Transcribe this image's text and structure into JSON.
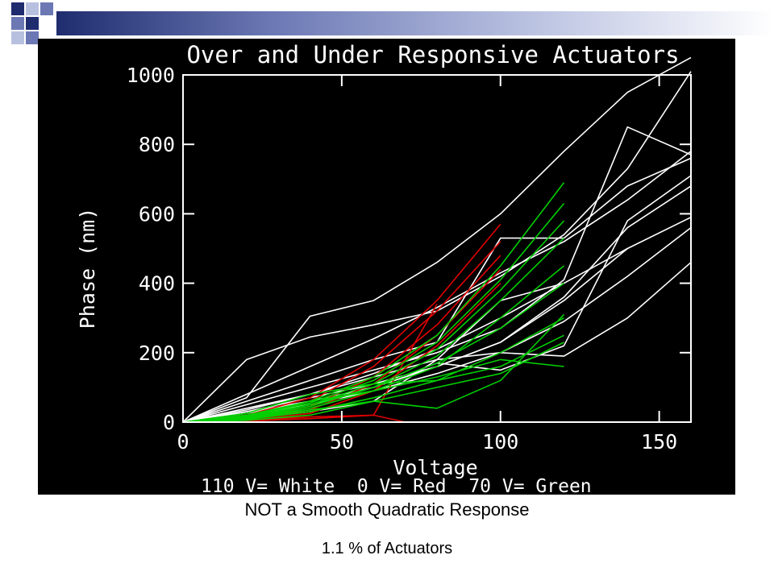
{
  "slide": {
    "caption": "NOT a Smooth Quadratic Response",
    "subcaption": "1.1 % of Actuators",
    "accent_colors": [
      "#1f2c6e",
      "#6b78b4",
      "#b8c0e0"
    ]
  },
  "chart_data": {
    "type": "line",
    "title": "Over and Under Responsive Actuators",
    "xlabel": "Voltage",
    "ylabel": "Phase (nm)",
    "legend_text": "110 V= White  0 V= Red  70 V= Green",
    "xlim": [
      0,
      160
    ],
    "ylim": [
      0,
      1000
    ],
    "xticks": [
      0,
      50,
      100,
      150
    ],
    "yticks": [
      0,
      200,
      400,
      600,
      800,
      1000
    ],
    "background": "#000000",
    "grid": false,
    "series_colors": {
      "white": "#ffffff",
      "red": "#e00000",
      "green": "#00d000"
    },
    "series": [
      {
        "color": "white",
        "x": [
          0,
          20,
          40,
          60,
          80,
          100,
          120,
          140,
          160
        ],
        "y": [
          0,
          180,
          245,
          280,
          320,
          420,
          540,
          730,
          1010
        ]
      },
      {
        "color": "white",
        "x": [
          0,
          20,
          40,
          60,
          80,
          100,
          120,
          140,
          160
        ],
        "y": [
          0,
          80,
          160,
          240,
          330,
          430,
          520,
          640,
          780
        ]
      },
      {
        "color": "white",
        "x": [
          0,
          20,
          40,
          60,
          80,
          100,
          120,
          140,
          160
        ],
        "y": [
          0,
          70,
          305,
          350,
          460,
          600,
          780,
          950,
          1050
        ]
      },
      {
        "color": "white",
        "x": [
          0,
          20,
          40,
          60,
          80,
          100,
          120,
          140,
          160
        ],
        "y": [
          0,
          50,
          100,
          150,
          200,
          270,
          410,
          850,
          770
        ]
      },
      {
        "color": "white",
        "x": [
          0,
          20,
          40,
          60,
          80,
          100,
          120,
          140,
          160
        ],
        "y": [
          0,
          40,
          80,
          130,
          180,
          200,
          190,
          300,
          460
        ]
      },
      {
        "color": "white",
        "x": [
          0,
          20,
          40,
          60,
          80,
          100,
          120,
          140,
          160
        ],
        "y": [
          0,
          30,
          60,
          100,
          160,
          230,
          350,
          500,
          590
        ]
      },
      {
        "color": "white",
        "x": [
          0,
          20,
          40,
          60,
          80,
          100,
          120,
          140,
          160
        ],
        "y": [
          0,
          30,
          70,
          110,
          160,
          230,
          360,
          560,
          680
        ]
      },
      {
        "color": "white",
        "x": [
          0,
          20,
          40,
          60,
          80,
          100,
          120,
          140,
          160
        ],
        "y": [
          0,
          20,
          50,
          90,
          140,
          200,
          290,
          420,
          560
        ]
      },
      {
        "color": "white",
        "x": [
          0,
          20,
          40,
          60,
          80,
          100,
          120,
          140,
          160
        ],
        "y": [
          0,
          60,
          120,
          180,
          230,
          530,
          530,
          680,
          760
        ]
      },
      {
        "color": "white",
        "x": [
          0,
          20,
          40,
          60,
          80,
          100,
          120,
          140,
          160
        ],
        "y": [
          0,
          25,
          60,
          100,
          170,
          150,
          220,
          580,
          710
        ]
      },
      {
        "color": "white",
        "x": [
          0,
          20,
          40,
          60,
          80,
          100,
          120
        ],
        "y": [
          0,
          10,
          30,
          60,
          180,
          350,
          400
        ]
      },
      {
        "color": "white",
        "x": [
          0,
          20,
          40,
          60,
          80,
          100,
          120,
          140
        ],
        "y": [
          0,
          35,
          80,
          140,
          210,
          300,
          400,
          500
        ]
      },
      {
        "color": "red",
        "x": [
          0,
          20,
          40,
          60,
          80,
          100
        ],
        "y": [
          0,
          20,
          70,
          180,
          350,
          570
        ]
      },
      {
        "color": "red",
        "x": [
          0,
          20,
          40,
          60,
          80,
          100
        ],
        "y": [
          0,
          15,
          60,
          160,
          320,
          520
        ]
      },
      {
        "color": "red",
        "x": [
          0,
          20,
          40,
          60,
          80,
          100
        ],
        "y": [
          0,
          10,
          45,
          130,
          280,
          480
        ]
      },
      {
        "color": "red",
        "x": [
          0,
          20,
          40,
          60,
          80,
          100
        ],
        "y": [
          0,
          8,
          35,
          110,
          250,
          440
        ]
      },
      {
        "color": "red",
        "x": [
          0,
          20,
          40,
          60,
          80,
          100
        ],
        "y": [
          0,
          5,
          25,
          90,
          220,
          400
        ]
      },
      {
        "color": "red",
        "x": [
          0,
          20,
          40,
          60,
          70
        ],
        "y": [
          0,
          5,
          15,
          20,
          0
        ]
      },
      {
        "color": "red",
        "x": [
          0,
          20,
          40,
          60,
          80
        ],
        "y": [
          0,
          3,
          10,
          20,
          340
        ]
      },
      {
        "color": "green",
        "x": [
          0,
          20,
          40,
          60,
          80,
          100,
          120
        ],
        "y": [
          0,
          20,
          60,
          130,
          250,
          450,
          690
        ]
      },
      {
        "color": "green",
        "x": [
          0,
          20,
          40,
          60,
          80,
          100,
          120
        ],
        "y": [
          0,
          18,
          55,
          120,
          230,
          410,
          630
        ]
      },
      {
        "color": "green",
        "x": [
          0,
          20,
          40,
          60,
          80,
          100,
          120
        ],
        "y": [
          0,
          15,
          50,
          110,
          210,
          380,
          580
        ]
      },
      {
        "color": "green",
        "x": [
          0,
          20,
          40,
          60,
          80,
          100,
          120
        ],
        "y": [
          0,
          12,
          45,
          100,
          190,
          350,
          530
        ]
      },
      {
        "color": "green",
        "x": [
          0,
          20,
          40,
          60,
          80,
          100,
          120
        ],
        "y": [
          0,
          10,
          40,
          90,
          160,
          300,
          450
        ]
      },
      {
        "color": "green",
        "x": [
          0,
          20,
          40,
          60,
          80,
          100,
          120
        ],
        "y": [
          0,
          8,
          30,
          70,
          120,
          200,
          300
        ]
      },
      {
        "color": "green",
        "x": [
          0,
          20,
          40,
          60,
          80,
          100,
          120
        ],
        "y": [
          0,
          10,
          35,
          60,
          100,
          140,
          230
        ]
      },
      {
        "color": "green",
        "x": [
          0,
          20,
          40,
          60,
          80,
          100,
          120
        ],
        "y": [
          0,
          15,
          60,
          90,
          130,
          180,
          160
        ]
      },
      {
        "color": "green",
        "x": [
          0,
          20,
          40,
          60,
          80,
          100,
          120
        ],
        "y": [
          0,
          5,
          20,
          60,
          40,
          120,
          310
        ]
      },
      {
        "color": "green",
        "x": [
          0,
          20,
          40,
          60,
          80,
          100,
          120
        ],
        "y": [
          0,
          12,
          50,
          100,
          170,
          270,
          400
        ]
      },
      {
        "color": "green",
        "x": [
          0,
          20,
          40,
          60,
          80,
          100,
          120
        ],
        "y": [
          0,
          25,
          80,
          110,
          120,
          160,
          250
        ]
      }
    ]
  }
}
